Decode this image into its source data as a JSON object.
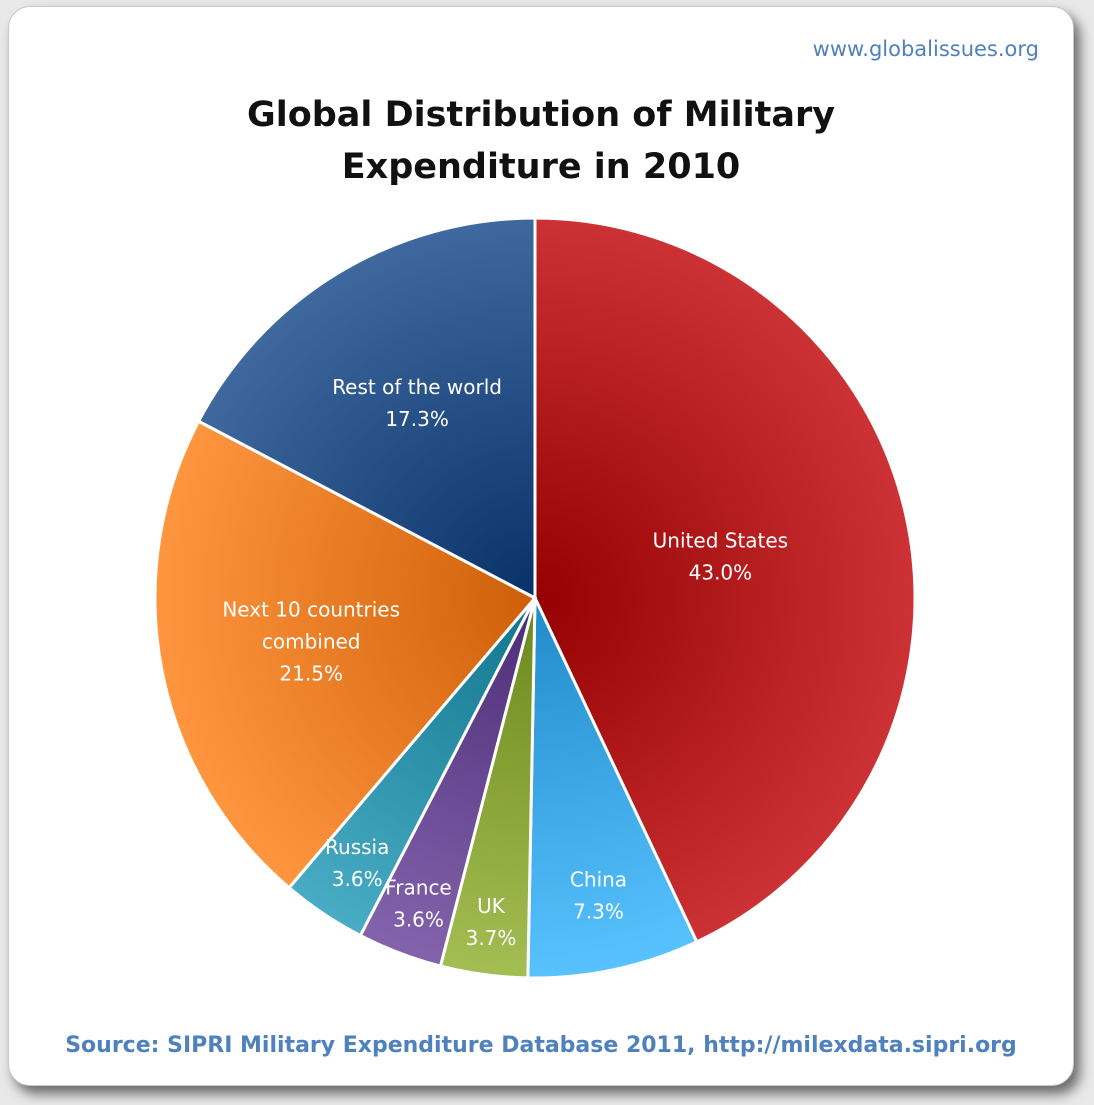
{
  "watermark": "www.globalissues.org",
  "source": "Source: SIPRI Military Expenditure Database 2011, http://milexdata.sipri.org",
  "chart_data": {
    "type": "pie",
    "title_lines": [
      "Global Distribution of Military",
      "Expenditure in 2010"
    ],
    "legend": "none",
    "slices": [
      {
        "label_lines": [
          "United States"
        ],
        "value": 43.0,
        "value_label": "43.0%",
        "color": "#b3191c"
      },
      {
        "label_lines": [
          "China"
        ],
        "value": 7.3,
        "value_label": "7.3%",
        "color": "#3fa9e8"
      },
      {
        "label_lines": [
          "UK"
        ],
        "value": 3.7,
        "value_label": "3.7%",
        "color": "#8aa53a"
      },
      {
        "label_lines": [
          "France"
        ],
        "value": 3.6,
        "value_label": "3.6%",
        "color": "#6a4a93"
      },
      {
        "label_lines": [
          "Russia"
        ],
        "value": 3.6,
        "value_label": "3.6%",
        "color": "#2f93ab"
      },
      {
        "label_lines": [
          "Next 10 countries",
          "combined"
        ],
        "value": 21.5,
        "value_label": "21.5%",
        "color": "#ec7d26"
      },
      {
        "label_lines": [
          "Rest of the world"
        ],
        "value": 17.3,
        "value_label": "17.3%",
        "color": "#264f86"
      }
    ]
  }
}
